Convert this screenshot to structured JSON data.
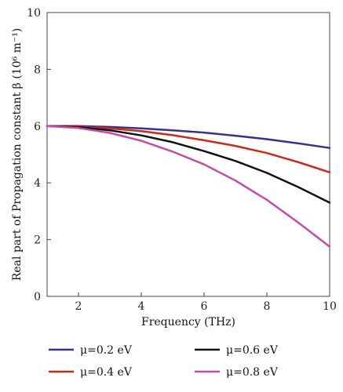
{
  "chart_data": {
    "type": "line",
    "xlabel": "Frequency (THz)",
    "ylabel": "Real part of Propagation constant β (10⁶ m⁻¹)",
    "xlim": [
      1,
      10
    ],
    "ylim": [
      0,
      10
    ],
    "xticks": [
      2,
      4,
      6,
      8,
      10
    ],
    "yticks": [
      0,
      2,
      4,
      6,
      8,
      10
    ],
    "grid": false,
    "legend_position": "bottom",
    "x": [
      1,
      2,
      3,
      4,
      5,
      6,
      7,
      8,
      9,
      10
    ],
    "series": [
      {
        "name": "μ=0.2 eV",
        "color": "#3b2f8c",
        "values": [
          6.0,
          6.0,
          5.97,
          5.92,
          5.85,
          5.77,
          5.66,
          5.54,
          5.39,
          5.23
        ]
      },
      {
        "name": "μ=0.4 eV",
        "color": "#c92a1e",
        "values": [
          6.0,
          5.98,
          5.92,
          5.82,
          5.68,
          5.5,
          5.3,
          5.05,
          4.73,
          4.37
        ]
      },
      {
        "name": "μ=0.6 eV",
        "color": "#111111",
        "values": [
          6.0,
          5.96,
          5.85,
          5.67,
          5.43,
          5.12,
          4.77,
          4.35,
          3.85,
          3.3
        ]
      },
      {
        "name": "μ=0.8 eV",
        "color": "#c44aa8",
        "values": [
          6.0,
          5.93,
          5.76,
          5.48,
          5.1,
          4.65,
          4.08,
          3.4,
          2.6,
          1.75
        ]
      }
    ]
  }
}
